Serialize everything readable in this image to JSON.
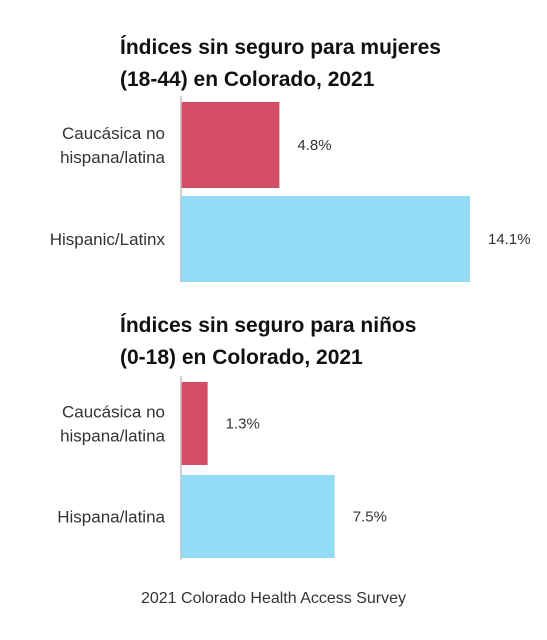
{
  "chart_data": [
    {
      "type": "bar",
      "orientation": "horizontal",
      "title": "Índices sin seguro para mujeres\n(18-44) en Colorado, 2021",
      "categories": [
        "Caucásica no hispana/latina",
        "Hispanic/Latinx"
      ],
      "category_lines": [
        [
          "Caucásica no",
          "hispana/latina"
        ],
        [
          "Hispanic/Latinx"
        ]
      ],
      "values": [
        4.8,
        14.1
      ],
      "value_labels": [
        "4.8%",
        "14.1%"
      ],
      "colors": [
        "#d44d67",
        "#92dcf8"
      ],
      "xlim": [
        0,
        14.1
      ],
      "grid": false
    },
    {
      "type": "bar",
      "orientation": "horizontal",
      "title": "Índices sin seguro para niños\n(0-18) en Colorado, 2021",
      "categories": [
        "Caucásica no hispana/latina",
        "Hispana/latina"
      ],
      "category_lines": [
        [
          "Caucásica no",
          "hispana/latina"
        ],
        [
          "Hispana/latina"
        ]
      ],
      "values": [
        1.3,
        7.5
      ],
      "value_labels": [
        "1.3%",
        "7.5%"
      ],
      "colors": [
        "#d44d67",
        "#92dcf8"
      ],
      "xlim": [
        0,
        14.1
      ],
      "grid": false
    }
  ],
  "source": "2021 Colorado Health Access Survey"
}
